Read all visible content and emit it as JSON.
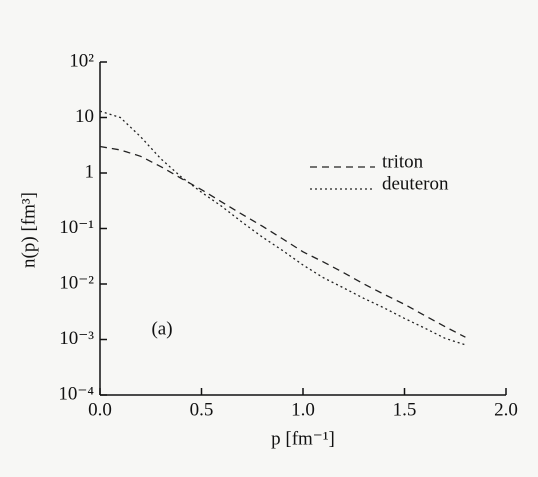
{
  "chart_data": {
    "type": "line",
    "xlabel": "p  [fm⁻¹]",
    "ylabel": "n(p)  [fm³]",
    "annotation": "(a)",
    "x": [
      0,
      0.1,
      0.2,
      0.3,
      0.4,
      0.5,
      0.6,
      0.7,
      0.8,
      0.9,
      1.0,
      1.1,
      1.2,
      1.3,
      1.4,
      1.5,
      1.6,
      1.7,
      1.8
    ],
    "series": [
      {
        "name": "triton",
        "color": "#222222",
        "dash": "7,5",
        "values": [
          3.0,
          2.6,
          2.0,
          1.3,
          0.8,
          0.5,
          0.3,
          0.18,
          0.11,
          0.065,
          0.038,
          0.025,
          0.016,
          0.01,
          0.0065,
          0.0043,
          0.0027,
          0.0017,
          0.0011
        ]
      },
      {
        "name": "deuteron",
        "color": "#222222",
        "dash": "2,3",
        "values": [
          13,
          10,
          4.5,
          1.8,
          0.85,
          0.45,
          0.25,
          0.13,
          0.07,
          0.04,
          0.022,
          0.013,
          0.0085,
          0.0055,
          0.0037,
          0.0024,
          0.0016,
          0.00105,
          0.0008
        ]
      }
    ],
    "xlim": [
      0,
      2.0
    ],
    "xticks": [
      {
        "value": 0,
        "label": "0.0"
      },
      0.5,
      {
        "value": 1.0,
        "label": "1.0"
      },
      1.5,
      {
        "value": 2.0,
        "label": "2.0"
      }
    ],
    "ylim": [
      0.0001,
      100
    ],
    "log_y": true,
    "yticks": [
      {
        "value": 0.0001,
        "label": "10⁻⁴"
      },
      {
        "value": 0.001,
        "label": "10⁻³"
      },
      {
        "value": 0.01,
        "label": "10⁻²"
      },
      {
        "value": 0.1,
        "label": "10⁻¹"
      },
      1,
      10,
      {
        "value": 100,
        "label": "10²"
      }
    ],
    "legend": "right",
    "grid": false
  }
}
